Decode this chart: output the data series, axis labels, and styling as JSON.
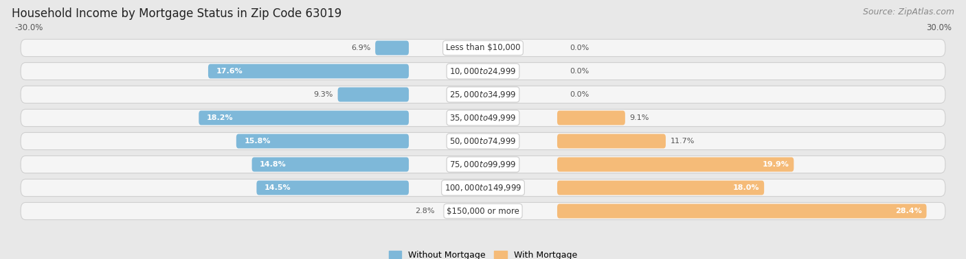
{
  "title": "Household Income by Mortgage Status in Zip Code 63019",
  "source": "Source: ZipAtlas.com",
  "categories": [
    "Less than $10,000",
    "$10,000 to $24,999",
    "$25,000 to $34,999",
    "$35,000 to $49,999",
    "$50,000 to $74,999",
    "$75,000 to $99,999",
    "$100,000 to $149,999",
    "$150,000 or more"
  ],
  "without_mortgage": [
    6.9,
    17.6,
    9.3,
    18.2,
    15.8,
    14.8,
    14.5,
    2.8
  ],
  "with_mortgage": [
    0.0,
    0.0,
    0.0,
    9.1,
    11.7,
    19.9,
    18.0,
    28.4
  ],
  "without_mortgage_color": "#7eb8d9",
  "with_mortgage_color": "#f5bb78",
  "background_color": "#e8e8e8",
  "row_bg_color": "#f5f5f5",
  "row_border_color": "#d0d0d0",
  "xlim_left": -30.0,
  "xlim_right": 30.0,
  "x_left_label": "-30.0%",
  "x_right_label": "30.0%",
  "label_inside_threshold": 12.0,
  "label_fontsize": 8.0,
  "cat_label_fontsize": 8.5,
  "title_fontsize": 12,
  "source_fontsize": 9
}
